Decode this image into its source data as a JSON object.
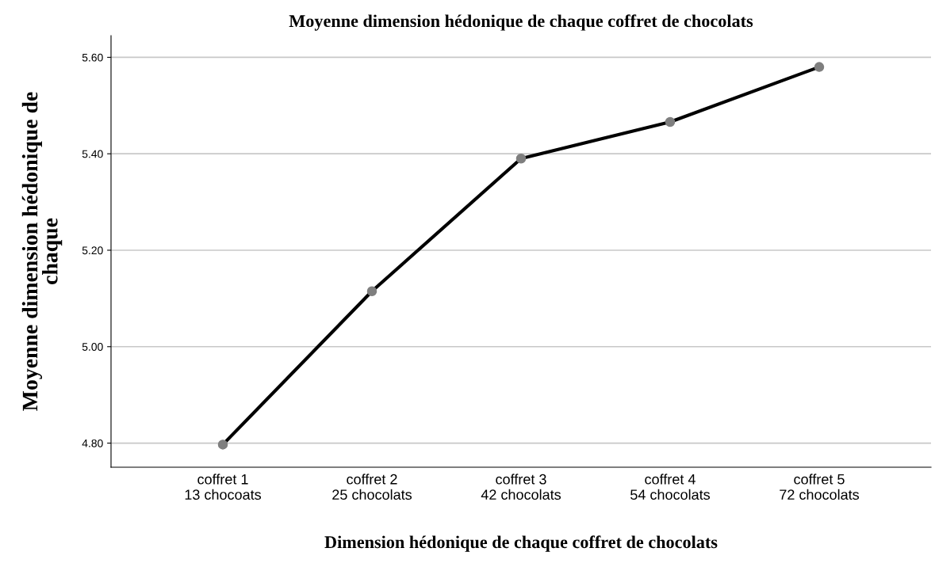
{
  "chart_data": {
    "type": "line",
    "title": "Moyenne dimension hédonique de chaque coffret de chocolats",
    "xlabel": "Dimension hédonique de chaque coffret de chocolats",
    "ylabel": "Moyenne dimension hédonique de\nchaque",
    "categories": [
      "coffret 1\n13 chocoats",
      "coffret 2\n25 chocolats",
      "coffret 3\n42 chocolats",
      "coffret 4\n54 chocolats",
      "coffret 5\n72 chocolats"
    ],
    "series": [
      {
        "color": "#000000",
        "values": [
          4.797,
          5.115,
          5.39,
          5.466,
          5.58
        ]
      }
    ],
    "marker": "circle",
    "ylim": [
      4.75,
      5.645
    ],
    "yticks": [
      {
        "value": 4.8,
        "label": "4.80"
      },
      {
        "value": 5.0,
        "label": "5.00"
      },
      {
        "value": 5.2,
        "label": "5.20"
      },
      {
        "value": 5.4,
        "label": "5.40"
      },
      {
        "value": 5.6,
        "label": "5.60"
      }
    ],
    "grid": "y"
  }
}
